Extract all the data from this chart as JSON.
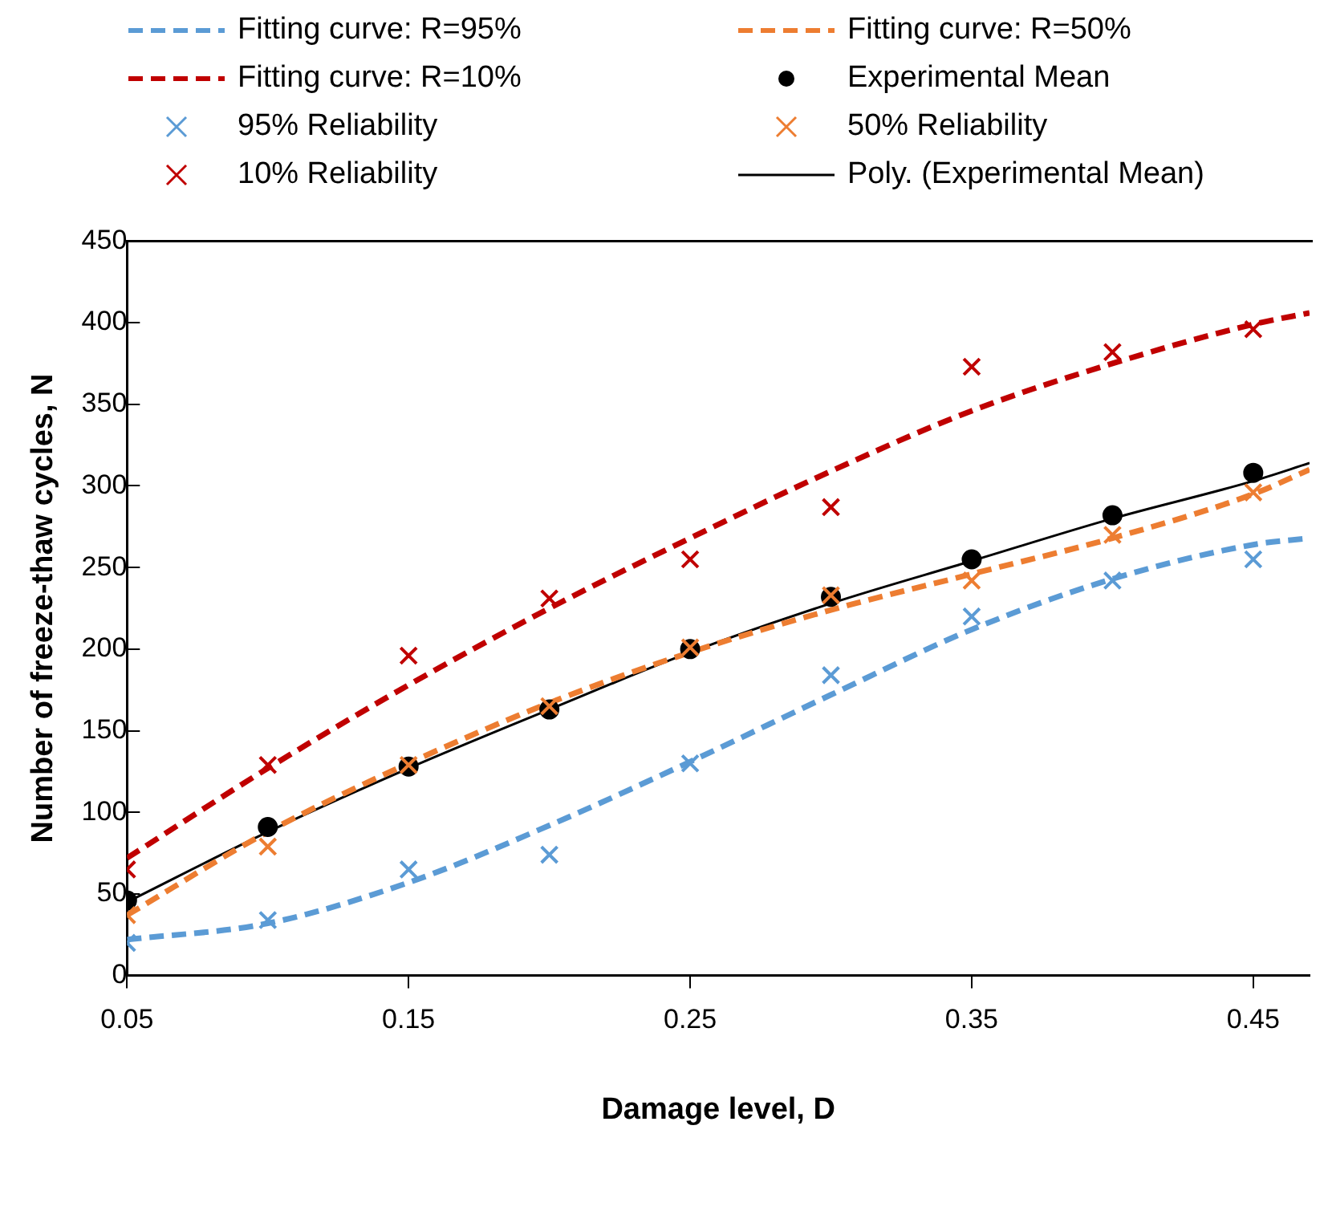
{
  "chart_data": {
    "type": "line",
    "xlabel": "Damage level, D",
    "ylabel": "Number of freeze-thaw cycles, N",
    "xlim": [
      0.05,
      0.47
    ],
    "xticks": [
      0.05,
      0.15,
      0.25,
      0.35,
      0.45
    ],
    "ylim": [
      0,
      450
    ],
    "yticks": [
      0,
      50,
      100,
      150,
      200,
      250,
      300,
      350,
      400,
      450
    ],
    "grid": false,
    "legend": "top",
    "series": [
      {
        "name": "Fitting curve: R=95%",
        "type": "line",
        "color": "#5b9bd5",
        "line_style": "dashed",
        "marker": "none",
        "x": [
          0.05,
          0.1,
          0.15,
          0.2,
          0.25,
          0.3,
          0.35,
          0.4,
          0.45,
          0.47
        ],
        "values": [
          22,
          32,
          57,
          92,
          131,
          172,
          212,
          243,
          264,
          268
        ]
      },
      {
        "name": "Fitting curve: R=50%",
        "type": "line",
        "color": "#ed7d31",
        "line_style": "dashed",
        "marker": "none",
        "x": [
          0.05,
          0.1,
          0.15,
          0.2,
          0.25,
          0.3,
          0.35,
          0.4,
          0.45,
          0.47
        ],
        "values": [
          37,
          88,
          130,
          167,
          198,
          224,
          246,
          268,
          295,
          310
        ]
      },
      {
        "name": "Fitting curve: R=10%",
        "type": "line",
        "color": "#c00000",
        "line_style": "dashed",
        "marker": "none",
        "x": [
          0.05,
          0.1,
          0.15,
          0.2,
          0.25,
          0.3,
          0.35,
          0.4,
          0.45,
          0.47
        ],
        "values": [
          72,
          127,
          178,
          225,
          268,
          309,
          346,
          375,
          399,
          406
        ]
      },
      {
        "name": "Experimental Mean",
        "type": "scatter",
        "color": "#000000",
        "marker": "circle",
        "x": [
          0.05,
          0.1,
          0.15,
          0.2,
          0.25,
          0.3,
          0.35,
          0.4,
          0.45
        ],
        "values": [
          46,
          91,
          128,
          163,
          200,
          232,
          255,
          282,
          308
        ]
      },
      {
        "name": "95% Reliability",
        "type": "scatter",
        "color": "#5b9bd5",
        "marker": "cross",
        "x": [
          0.05,
          0.1,
          0.15,
          0.2,
          0.25,
          0.3,
          0.35,
          0.4,
          0.45
        ],
        "values": [
          20,
          34,
          65,
          74,
          130,
          184,
          220,
          242,
          255
        ]
      },
      {
        "name": "50% Reliability",
        "type": "scatter",
        "color": "#ed7d31",
        "marker": "cross",
        "x": [
          0.05,
          0.1,
          0.15,
          0.2,
          0.25,
          0.3,
          0.35,
          0.4,
          0.45
        ],
        "values": [
          37,
          79,
          129,
          165,
          201,
          233,
          242,
          270,
          296
        ]
      },
      {
        "name": "10% Reliability",
        "type": "scatter",
        "color": "#c00000",
        "marker": "cross",
        "x": [
          0.05,
          0.1,
          0.15,
          0.2,
          0.25,
          0.3,
          0.35,
          0.4,
          0.45
        ],
        "values": [
          65,
          129,
          196,
          231,
          255,
          287,
          373,
          382,
          396
        ]
      },
      {
        "name": "Poly. (Experimental Mean)",
        "type": "line",
        "color": "#000000",
        "line_style": "solid",
        "marker": "none",
        "x": [
          0.05,
          0.1,
          0.15,
          0.2,
          0.25,
          0.3,
          0.35,
          0.4,
          0.45,
          0.47
        ],
        "values": [
          45,
          88,
          127,
          163,
          198,
          228,
          254,
          280,
          303,
          314
        ]
      }
    ]
  }
}
